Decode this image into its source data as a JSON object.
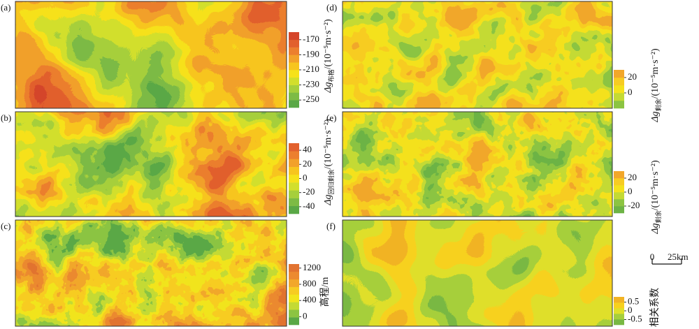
{
  "panels": [
    {
      "label": "(a)",
      "colorbar": {
        "ticks": [
          -170,
          -190,
          -210,
          -230,
          -250
        ],
        "lim": [
          -260,
          -160
        ],
        "colors": [
          "#5aa846",
          "#7dbb45",
          "#a6cf3c",
          "#d2df2c",
          "#f6e21a",
          "#f7c51e",
          "#f2a12a",
          "#ec7f2e",
          "#e2602d",
          "#d5452a"
        ],
        "title": "Δg",
        "title_sub": "布格",
        "title_unit": "/(10⁻⁵m·s⁻²)"
      }
    },
    {
      "label": "(b)",
      "colorbar": {
        "ticks": [
          40,
          20,
          0,
          -20,
          -40
        ],
        "lim": [
          -50,
          50
        ],
        "colors": [
          "#5aa846",
          "#7dbb45",
          "#a6cf3c",
          "#d2df2c",
          "#f6e21a",
          "#f7c51e",
          "#f2a12a",
          "#ec7f2e",
          "#e2602d"
        ],
        "title": "Δg",
        "title_sub": "回归剩余",
        "title_unit": "/(10⁻⁵m·s⁻²)"
      }
    },
    {
      "label": "(c)",
      "colorbar": {
        "ticks": [
          1200,
          800,
          400,
          0
        ],
        "lim": [
          -200,
          1300
        ],
        "colors": [
          "#5aa846",
          "#8cc442",
          "#c4da34",
          "#f2e51c",
          "#f7cc22",
          "#f2a72a",
          "#ec8a30",
          "#e27330"
        ],
        "title": "高程/m"
      }
    },
    {
      "label": "(d)",
      "colorbar": {
        "ticks": [
          20,
          0
        ],
        "lim": [
          -20,
          30
        ],
        "colors": [
          "#8cc442",
          "#c4da34",
          "#f4e21c",
          "#f7cc22",
          "#f2a72a"
        ],
        "title": "Δg",
        "title_sub": "剩余",
        "title_unit": "/(10⁻⁵m·s⁻²)"
      }
    },
    {
      "label": "(e)",
      "colorbar": {
        "ticks": [
          20,
          0,
          -20
        ],
        "lim": [
          -30,
          30
        ],
        "colors": [
          "#6db345",
          "#8cc442",
          "#c4da34",
          "#f4e21c",
          "#f7cc22",
          "#f2a72a"
        ],
        "title": "Δg",
        "title_sub": "剩余",
        "title_unit": "/(10⁻⁵m·s⁻²)"
      }
    },
    {
      "label": "(f)",
      "colorbar": {
        "ticks": [
          0.5,
          0,
          -0.5
        ],
        "lim": [
          -0.8,
          0.8
        ],
        "colors": [
          "#79b843",
          "#a6cf3c",
          "#dfe02a",
          "#f7d11e",
          "#f2b324"
        ],
        "title": "相关系数"
      }
    }
  ],
  "scale_bar": {
    "start": "0",
    "end": "25km"
  }
}
